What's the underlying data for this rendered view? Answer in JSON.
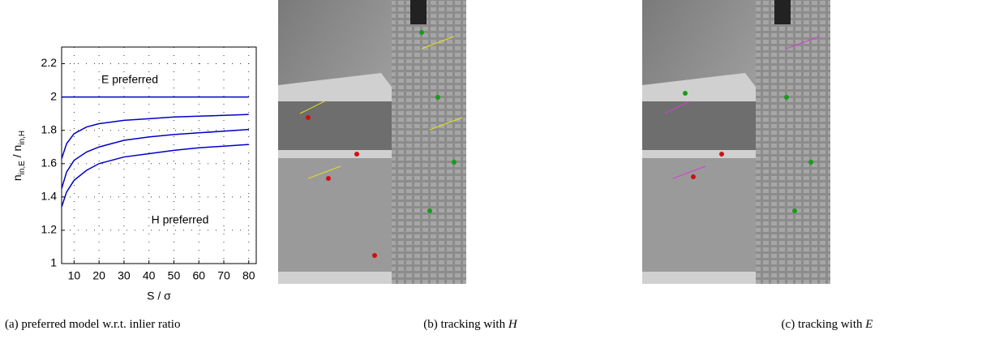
{
  "chart_data": {
    "type": "line",
    "y_label": [
      "n",
      "in,E",
      " / n",
      "in,H"
    ],
    "x_label": "S / σ",
    "annotations": [
      "E preferred",
      "H preferred"
    ],
    "x": [
      5,
      7,
      10,
      15,
      20,
      30,
      40,
      50,
      60,
      70,
      80
    ],
    "series": [
      {
        "color": "#0000c8",
        "values": [
          2,
          2,
          2,
          2,
          2,
          2,
          2,
          2,
          2,
          2,
          2
        ]
      },
      {
        "color": "#0000c8",
        "values": [
          1.63,
          1.72,
          1.78,
          1.82,
          1.84,
          1.86,
          1.87,
          1.88,
          1.885,
          1.89,
          1.895
        ]
      },
      {
        "color": "#0000c8",
        "values": [
          1.45,
          1.55,
          1.62,
          1.67,
          1.7,
          1.74,
          1.76,
          1.775,
          1.785,
          1.795,
          1.805
        ]
      },
      {
        "color": "#0000c8",
        "values": [
          1.34,
          1.43,
          1.5,
          1.56,
          1.6,
          1.64,
          1.66,
          1.68,
          1.695,
          1.705,
          1.715
        ]
      }
    ],
    "xlim": [
      5,
      83
    ],
    "ylim": [
      1,
      2.3
    ],
    "xticks": [
      10,
      20,
      30,
      40,
      50,
      60,
      70,
      80
    ],
    "yticks": [
      1,
      1.2,
      1.4,
      1.6,
      1.8,
      2,
      2.2
    ],
    "grid": true
  },
  "figures": [
    {
      "caption": [
        "(a)",
        "preferred model w.r.t. inlier ratio"
      ]
    },
    {
      "caption": [
        "(b)",
        "tracking with ",
        "H"
      ]
    },
    {
      "caption": [
        "(c)",
        "tracking with ",
        "E"
      ]
    }
  ]
}
